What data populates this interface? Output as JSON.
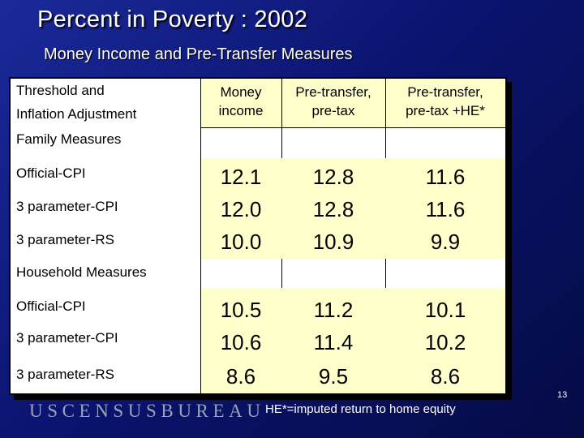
{
  "title": "Percent in Poverty : 2002",
  "subtitle": "Money Income and Pre-Transfer Measures",
  "table": {
    "corner_line1": "Threshold and",
    "corner_line2": "Inflation Adjustment",
    "columns": [
      {
        "line1": "Money",
        "line2": "income"
      },
      {
        "line1": "Pre-transfer,",
        "line2": "pre-tax"
      },
      {
        "line1": "Pre-transfer,",
        "line2": "pre-tax +HE*"
      }
    ],
    "family_section": "Family Measures",
    "family_rows": [
      {
        "label": "Official-CPI",
        "values": [
          "12.1",
          "12.8",
          "11.6"
        ]
      },
      {
        "label": "3 parameter-CPI",
        "values": [
          "12.0",
          "12.8",
          "11.6"
        ]
      },
      {
        "label": "3 parameter-RS",
        "values": [
          "10.0",
          "10.9",
          "9.9"
        ]
      }
    ],
    "household_section": "Household Measures",
    "household_rows": [
      {
        "label": "Official-CPI",
        "values": [
          "10.5",
          "11.2",
          "10.1"
        ]
      },
      {
        "label": "3 parameter-CPI",
        "values": [
          "10.6",
          "11.4",
          "10.2"
        ]
      },
      {
        "label": "3 parameter-RS",
        "values": [
          "8.6",
          "9.5",
          "8.6"
        ]
      }
    ]
  },
  "logo_text": "USCENSUSBUREAU",
  "footnote": "HE*=imputed return to home equity",
  "page_number": "13",
  "colors": {
    "background": "#0b1470",
    "data_fill": "#ffffcc",
    "text": "#000000"
  }
}
